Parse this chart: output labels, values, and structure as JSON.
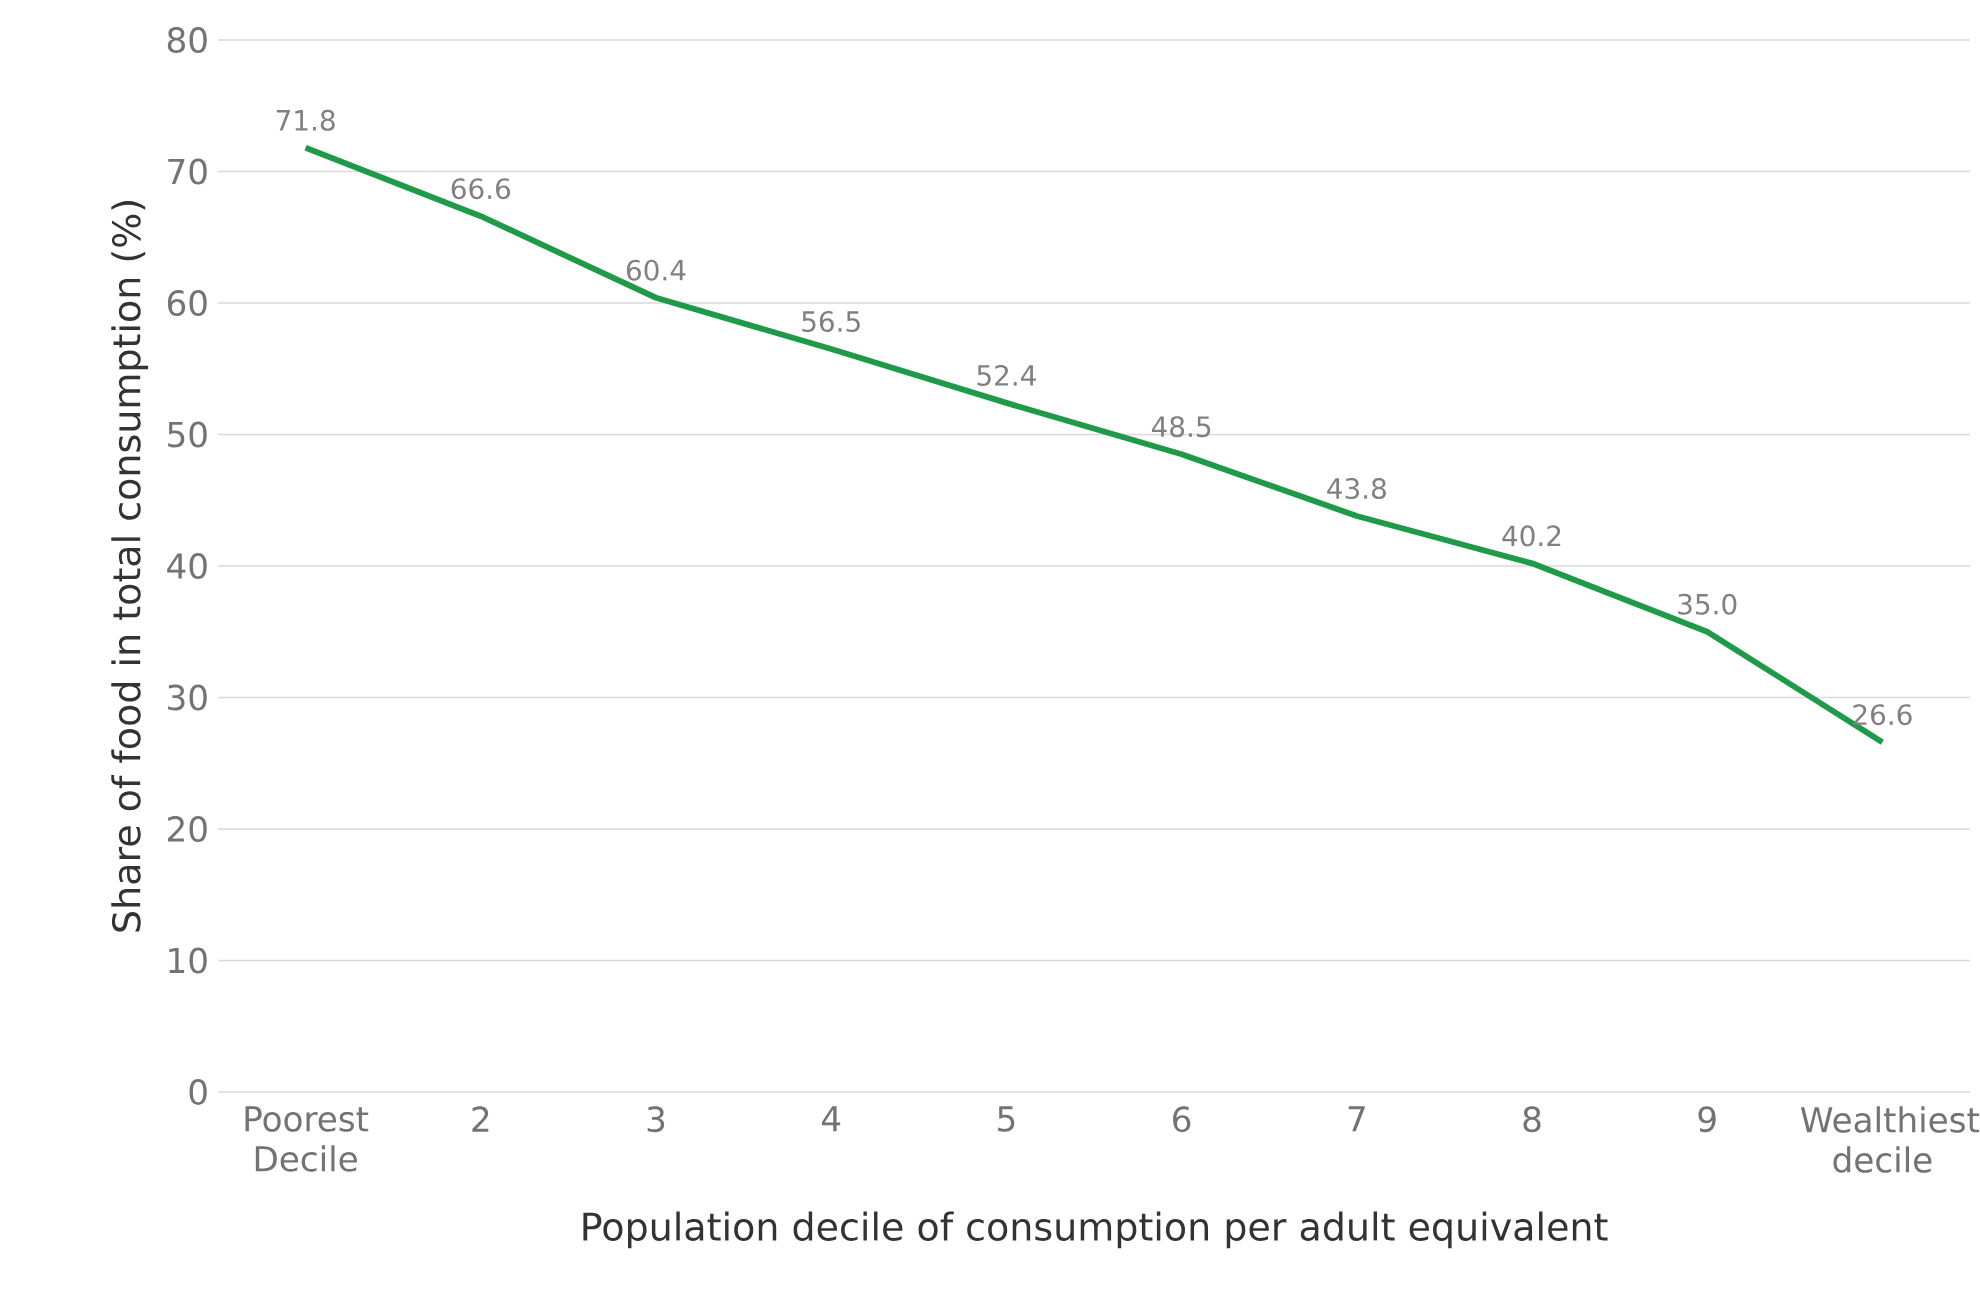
{
  "chart_data": {
    "type": "line",
    "xlabel": "Population decile of consumption per adult equivalent",
    "ylabel": "Share of food in total consumption (%)",
    "categories": [
      "Poorest Decile",
      "2",
      "3",
      "4",
      "5",
      "6",
      "7",
      "8",
      "9",
      "Wealthiest decile"
    ],
    "series": [
      {
        "color": "#1f9a48",
        "values": [
          71.8,
          66.6,
          60.4,
          56.5,
          52.4,
          48.5,
          43.8,
          40.2,
          35.0,
          26.6
        ],
        "value_labels": [
          "71.8",
          "66.6",
          "60.4",
          "56.5",
          "52.4",
          "48.5",
          "43.8",
          "40.2",
          "35.0",
          "26.6"
        ]
      }
    ],
    "ylim": [
      0,
      80
    ],
    "yticks": [
      0,
      10,
      20,
      30,
      40,
      50,
      60,
      70,
      80
    ],
    "grid": "y",
    "marker": "none",
    "line_style": "solid"
  }
}
